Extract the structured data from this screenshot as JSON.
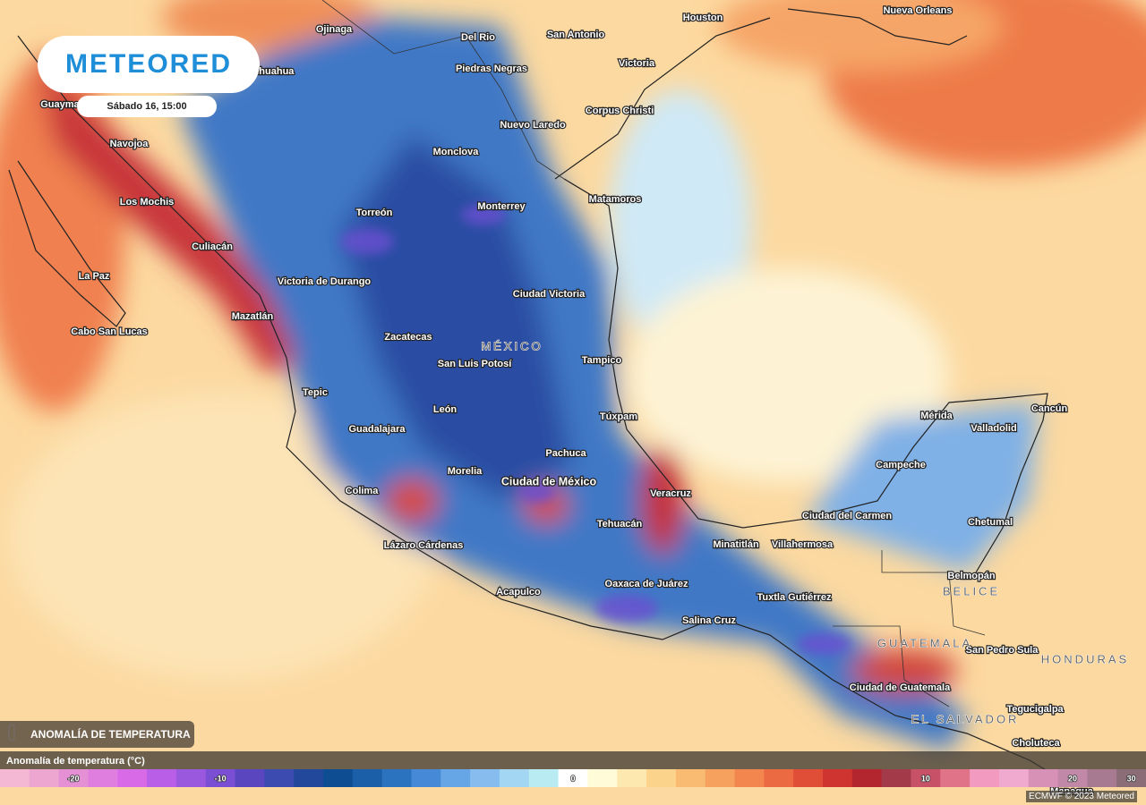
{
  "logo": "METEORED",
  "timestamp": "Sábado 16, 15:00",
  "layer_badge": "ANOMALÍA DE TEMPERATURA",
  "places": [
    "Ojinaga",
    "Del Rio",
    "San Antonio",
    "Houston",
    "Nueva Orleans",
    "Chihuahua",
    "Guaymas",
    "Piedras Negras",
    "Victoria",
    "Corpus Christi",
    "Nuevo Laredo",
    "Monclova",
    "Navojoa",
    "Los Mochis",
    "Matamoros",
    "Monterrey",
    "Torreón",
    "Culiacán",
    "La Paz",
    "Victoria de Durango",
    "Ciudad Victoria",
    "Mazatlán",
    "Cabo San Lucas",
    "Zacatecas",
    "San Luis Potosí",
    "Tampico",
    "Tepic",
    "León",
    "Túxpam",
    "Guadalajara",
    "Pachuca",
    "Morelia",
    "Ciudad de México",
    "Veracruz",
    "Colima",
    "Tehuacán",
    "Lázaro Cárdenas",
    "Minatitlán",
    "Villahermosa",
    "Ciudad del Carmen",
    "Campeche",
    "Mérida",
    "Valladolid",
    "Cancún",
    "Chetumal",
    "Belmopán",
    "Oaxaca de Juárez",
    "Acapulco",
    "Tuxtla Gutiérrez",
    "Salina Cruz",
    "San Pedro Sula",
    "Ciudad de Guatemala",
    "Tegucigalpa",
    "Choluteca",
    "Managua"
  ],
  "countries": [
    "MÉXICO",
    "BELICE",
    "GUATEMALA",
    "HONDURAS",
    "EL SALVADOR"
  ],
  "legend": {
    "title": "Anomalía de temperatura (°C)",
    "ticks": [
      -20,
      -10,
      0,
      10,
      20,
      30
    ],
    "colors": [
      "#f4b8d4",
      "#eda6cf",
      "#e58fd4",
      "#e07ee0",
      "#d86ae8",
      "#b95ee6",
      "#9a58de",
      "#7a4fd3",
      "#5a46bf",
      "#3b4bb0",
      "#22489c",
      "#0f4d93",
      "#1a5fa8",
      "#2c73bf",
      "#4689d6",
      "#66a6e6",
      "#86bdee",
      "#a3d6f2",
      "#b8ecf2",
      "#ffffff",
      "#fffbd9",
      "#fde9b0",
      "#fcd38a",
      "#f9bb72",
      "#f6a25e",
      "#f2864e",
      "#ec6a42",
      "#e04e38",
      "#cf3430",
      "#b3262f",
      "#a33a4a",
      "#c75268",
      "#e07388",
      "#f39ac0",
      "#f0a9cf",
      "#d891b6",
      "#c188a8",
      "#a87a92",
      "#8b6d78"
    ]
  },
  "credit": "ECMWF © 2023 Meteored"
}
